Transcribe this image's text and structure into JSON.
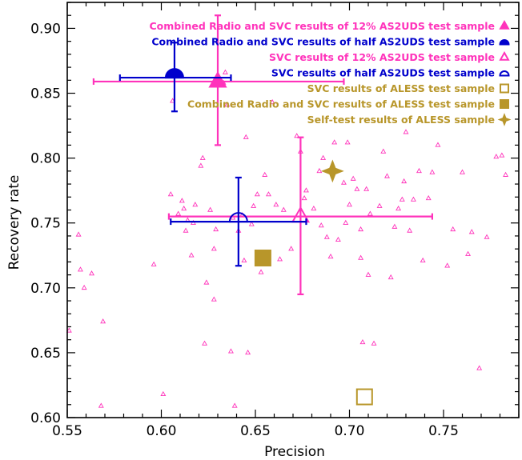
{
  "chart_data": {
    "type": "scatter",
    "title": "",
    "xlabel": "Precision",
    "ylabel": "Recovery rate",
    "xlim": [
      0.55,
      0.79
    ],
    "ylim": [
      0.6,
      0.92
    ],
    "x_ticks": [
      "0.55",
      "0.60",
      "0.65",
      "0.70",
      "0.75"
    ],
    "y_ticks": [
      "0.60",
      "0.65",
      "0.70",
      "0.75",
      "0.80",
      "0.85",
      "0.90"
    ],
    "grid": false,
    "legend_position": "top-right",
    "colors": {
      "magenta": "#ff33bb",
      "blue": "#0000cc",
      "gold": "#b8962a"
    },
    "legend": [
      {
        "label": "Combined Radio and SVC results of 12% AS2UDS test sample",
        "marker": "triangle-filled",
        "color": "#ff33bb"
      },
      {
        "label": "Combined Radio and SVC results of half AS2UDS test sample",
        "marker": "halfcircle-filled",
        "color": "#0000cc"
      },
      {
        "label": "SVC results of 12% AS2UDS test sample",
        "marker": "triangle-open",
        "color": "#ff33bb"
      },
      {
        "label": "SVC results of half AS2UDS test sample",
        "marker": "halfcircle-open",
        "color": "#0000cc"
      },
      {
        "label": "SVC results of ALESS test sample",
        "marker": "square-open",
        "color": "#b8962a"
      },
      {
        "label": "Combined Radio and SVC results of ALESS test sample",
        "marker": "square-filled",
        "color": "#b8962a"
      },
      {
        "label": "Self-test results of ALESS sample",
        "marker": "star-filled",
        "color": "#b8962a"
      }
    ],
    "main_points": [
      {
        "series": "Combined Radio and SVC results of 12% AS2UDS test sample",
        "x": 0.63,
        "y": 0.859,
        "xerr": [
          0.564,
          0.697
        ],
        "yerr": [
          0.81,
          0.91
        ],
        "marker": "triangle-filled",
        "color": "#ff33bb"
      },
      {
        "series": "Combined Radio and SVC results of half AS2UDS test sample",
        "x": 0.607,
        "y": 0.862,
        "xerr": [
          0.578,
          0.637
        ],
        "yerr": [
          0.836,
          0.889
        ],
        "marker": "halfcircle-filled",
        "color": "#0000cc"
      },
      {
        "series": "SVC results of 12% AS2UDS test sample",
        "x": 0.674,
        "y": 0.755,
        "xerr": [
          0.604,
          0.744
        ],
        "yerr": [
          0.695,
          0.816
        ],
        "marker": "triangle-open",
        "color": "#ff33bb"
      },
      {
        "series": "SVC results of half AS2UDS test sample",
        "x": 0.641,
        "y": 0.751,
        "xerr": [
          0.605,
          0.677
        ],
        "yerr": [
          0.717,
          0.785
        ],
        "marker": "halfcircle-open",
        "color": "#0000cc"
      },
      {
        "series": "SVC results of ALESS test sample",
        "x": 0.708,
        "y": 0.616,
        "marker": "square-open",
        "color": "#b8962a"
      },
      {
        "series": "Combined Radio and SVC results of ALESS test sample",
        "x": 0.654,
        "y": 0.723,
        "marker": "square-filled",
        "color": "#b8962a"
      },
      {
        "series": "Self-test results of ALESS sample",
        "x": 0.691,
        "y": 0.79,
        "marker": "star-filled",
        "color": "#b8962a"
      }
    ],
    "bootstrap_points": [
      [
        0.551,
        0.667
      ],
      [
        0.556,
        0.741
      ],
      [
        0.557,
        0.714
      ],
      [
        0.559,
        0.7
      ],
      [
        0.563,
        0.711
      ],
      [
        0.569,
        0.674
      ],
      [
        0.568,
        0.609
      ],
      [
        0.596,
        0.718
      ],
      [
        0.601,
        0.618
      ],
      [
        0.606,
        0.844
      ],
      [
        0.605,
        0.772
      ],
      [
        0.609,
        0.757
      ],
      [
        0.612,
        0.761
      ],
      [
        0.611,
        0.767
      ],
      [
        0.613,
        0.744
      ],
      [
        0.614,
        0.752
      ],
      [
        0.616,
        0.725
      ],
      [
        0.617,
        0.75
      ],
      [
        0.618,
        0.764
      ],
      [
        0.621,
        0.794
      ],
      [
        0.622,
        0.8
      ],
      [
        0.623,
        0.657
      ],
      [
        0.624,
        0.704
      ],
      [
        0.626,
        0.76
      ],
      [
        0.628,
        0.73
      ],
      [
        0.628,
        0.691
      ],
      [
        0.629,
        0.745
      ],
      [
        0.633,
        0.858
      ],
      [
        0.634,
        0.866
      ],
      [
        0.635,
        0.841
      ],
      [
        0.637,
        0.651
      ],
      [
        0.638,
        0.754
      ],
      [
        0.639,
        0.609
      ],
      [
        0.641,
        0.744
      ],
      [
        0.643,
        0.756
      ],
      [
        0.644,
        0.721
      ],
      [
        0.645,
        0.816
      ],
      [
        0.646,
        0.65
      ],
      [
        0.648,
        0.749
      ],
      [
        0.649,
        0.763
      ],
      [
        0.651,
        0.772
      ],
      [
        0.653,
        0.712
      ],
      [
        0.655,
        0.787
      ],
      [
        0.657,
        0.772
      ],
      [
        0.659,
        0.843
      ],
      [
        0.661,
        0.764
      ],
      [
        0.663,
        0.722
      ],
      [
        0.665,
        0.76
      ],
      [
        0.669,
        0.73
      ],
      [
        0.672,
        0.817
      ],
      [
        0.674,
        0.805
      ],
      [
        0.676,
        0.769
      ],
      [
        0.677,
        0.775
      ],
      [
        0.681,
        0.761
      ],
      [
        0.684,
        0.79
      ],
      [
        0.685,
        0.748
      ],
      [
        0.686,
        0.8
      ],
      [
        0.688,
        0.739
      ],
      [
        0.69,
        0.724
      ],
      [
        0.692,
        0.812
      ],
      [
        0.694,
        0.737
      ],
      [
        0.697,
        0.781
      ],
      [
        0.698,
        0.75
      ],
      [
        0.699,
        0.812
      ],
      [
        0.7,
        0.764
      ],
      [
        0.702,
        0.784
      ],
      [
        0.704,
        0.776
      ],
      [
        0.706,
        0.745
      ],
      [
        0.706,
        0.723
      ],
      [
        0.707,
        0.658
      ],
      [
        0.709,
        0.776
      ],
      [
        0.71,
        0.71
      ],
      [
        0.711,
        0.757
      ],
      [
        0.713,
        0.657
      ],
      [
        0.716,
        0.763
      ],
      [
        0.718,
        0.805
      ],
      [
        0.72,
        0.786
      ],
      [
        0.722,
        0.708
      ],
      [
        0.724,
        0.747
      ],
      [
        0.726,
        0.761
      ],
      [
        0.728,
        0.768
      ],
      [
        0.729,
        0.782
      ],
      [
        0.73,
        0.82
      ],
      [
        0.732,
        0.744
      ],
      [
        0.734,
        0.768
      ],
      [
        0.737,
        0.79
      ],
      [
        0.739,
        0.721
      ],
      [
        0.742,
        0.769
      ],
      [
        0.744,
        0.789
      ],
      [
        0.747,
        0.81
      ],
      [
        0.752,
        0.717
      ],
      [
        0.755,
        0.745
      ],
      [
        0.76,
        0.789
      ],
      [
        0.763,
        0.726
      ],
      [
        0.765,
        0.743
      ],
      [
        0.769,
        0.638
      ],
      [
        0.773,
        0.739
      ],
      [
        0.778,
        0.801
      ],
      [
        0.781,
        0.802
      ],
      [
        0.783,
        0.787
      ]
    ]
  }
}
